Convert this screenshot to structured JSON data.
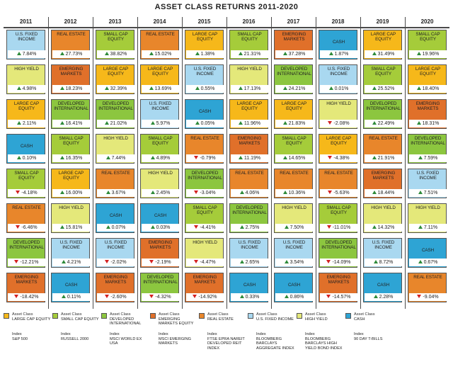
{
  "title": "ASSET CLASS RETURNS 2011-2020",
  "colors": {
    "large_cap": "#f6b81a",
    "small_cap": "#a5cc3a",
    "developed": "#8cc63f",
    "emerging": "#e0702a",
    "real_estate": "#e8862b",
    "us_fixed": "#a9d8f0",
    "high_yield": "#e4e87a",
    "cash": "#2ea4d4"
  },
  "assets": {
    "large_cap": "LARGE CAP EQUITY",
    "small_cap": "SMALL CAP EQUITY",
    "developed": "DEVELOPED INTERNATIONAL",
    "emerging": "EMERGING MARKETS",
    "real_estate": "REAL ESTATE",
    "us_fixed": "U.S. FIXED INCOME",
    "high_yield": "HIGH YIELD",
    "cash": "CASH"
  },
  "chart_data": {
    "type": "table",
    "title": "ASSET CLASS RETURNS 2011-2020",
    "years": [
      "2011",
      "2012",
      "2013",
      "2014",
      "2015",
      "2016",
      "2017",
      "2018",
      "2019",
      "2020"
    ],
    "columns": [
      [
        [
          "U.S. FIXED INCOME",
          "7.84%",
          "up",
          "us_fixed"
        ],
        [
          "HIGH YIELD",
          "4.98%",
          "up",
          "high_yield"
        ],
        [
          "LARGE CAP EQUITY",
          "2.11%",
          "up",
          "large_cap"
        ],
        [
          "CASH",
          "0.10%",
          "up",
          "cash"
        ],
        [
          "SMALL CAP EQUITY",
          "-4.18%",
          "down",
          "small_cap"
        ],
        [
          "REAL ESTATE",
          "-6.46%",
          "down",
          "real_estate"
        ],
        [
          "DEVELOPED INTERNATIONAL",
          "-12.21%",
          "down",
          "developed"
        ],
        [
          "EMERGING MARKETS",
          "-18.42%",
          "down",
          "emerging"
        ]
      ],
      [
        [
          "REAL ESTATE",
          "27.73%",
          "up",
          "real_estate"
        ],
        [
          "EMERGING MARKETS",
          "18.23%",
          "up",
          "emerging"
        ],
        [
          "DEVELOPED INTERNATIONAL",
          "16.41%",
          "up",
          "developed"
        ],
        [
          "SMALL CAP EQUITY",
          "16.35%",
          "up",
          "small_cap"
        ],
        [
          "LARGE CAP EQUITY",
          "16.00%",
          "up",
          "large_cap"
        ],
        [
          "HIGH YIELD",
          "15.81%",
          "up",
          "high_yield"
        ],
        [
          "U.S. FIXED INCOME",
          "4.21%",
          "up",
          "us_fixed"
        ],
        [
          "CASH",
          "0.11%",
          "up",
          "cash"
        ]
      ],
      [
        [
          "SMALL CAP EQUITY",
          "38.82%",
          "up",
          "small_cap"
        ],
        [
          "LARGE CAP EQUITY",
          "32.39%",
          "up",
          "large_cap"
        ],
        [
          "DEVELOPED INTERNATIONAL",
          "21.02%",
          "up",
          "developed"
        ],
        [
          "HIGH YIELD",
          "7.44%",
          "up",
          "high_yield"
        ],
        [
          "REAL ESTATE",
          "3.67%",
          "up",
          "real_estate"
        ],
        [
          "CASH",
          "0.07%",
          "up",
          "cash"
        ],
        [
          "U.S. FIXED INCOME",
          "-2.02%",
          "down",
          "us_fixed"
        ],
        [
          "EMERGING MARKETS",
          "-2.60%",
          "down",
          "emerging"
        ]
      ],
      [
        [
          "REAL ESTATE",
          "15.02%",
          "up",
          "real_estate"
        ],
        [
          "LARGE CAP EQUITY",
          "13.69%",
          "up",
          "large_cap"
        ],
        [
          "U.S. FIXED INCOME",
          "5.97%",
          "up",
          "us_fixed"
        ],
        [
          "SMALL CAP EQUITY",
          "4.89%",
          "up",
          "small_cap"
        ],
        [
          "HIGH YIELD",
          "2.45%",
          "up",
          "high_yield"
        ],
        [
          "CASH",
          "0.03%",
          "up",
          "cash"
        ],
        [
          "EMERGING MARKETS",
          "-2.19%",
          "down",
          "emerging"
        ],
        [
          "DEVELOPED INTERNATIONAL",
          "-4.32%",
          "down",
          "developed"
        ]
      ],
      [
        [
          "LARGE CAP EQUITY",
          "1.38%",
          "up",
          "large_cap"
        ],
        [
          "U.S. FIXED INCOME",
          "0.55%",
          "up",
          "us_fixed"
        ],
        [
          "CASH",
          "0.05%",
          "up",
          "cash"
        ],
        [
          "REAL ESTATE",
          "-0.79%",
          "down",
          "real_estate"
        ],
        [
          "DEVELOPED INTERNATIONAL",
          "-3.04%",
          "down",
          "developed"
        ],
        [
          "SMALL CAP EQUITY",
          "-4.41%",
          "down",
          "small_cap"
        ],
        [
          "HIGH YIELD",
          "-4.47%",
          "down",
          "high_yield"
        ],
        [
          "EMERGING MARKETS",
          "-14.92%",
          "down",
          "emerging"
        ]
      ],
      [
        [
          "SMALL CAP EQUITY",
          "21.31%",
          "up",
          "small_cap"
        ],
        [
          "HIGH YIELD",
          "17.13%",
          "up",
          "high_yield"
        ],
        [
          "LARGE CAP EQUITY",
          "11.96%",
          "up",
          "large_cap"
        ],
        [
          "EMERGING MARKETS",
          "11.19%",
          "up",
          "emerging"
        ],
        [
          "REAL ESTATE",
          "4.06%",
          "up",
          "real_estate"
        ],
        [
          "DEVELOPED INTERNATIONAL",
          "2.75%",
          "up",
          "developed"
        ],
        [
          "U.S. FIXED INCOME",
          "2.65%",
          "up",
          "us_fixed"
        ],
        [
          "CASH",
          "0.33%",
          "up",
          "cash"
        ]
      ],
      [
        [
          "EMERGING MARKETS",
          "37.28%",
          "up",
          "emerging"
        ],
        [
          "DEVELOPED INTERNATIONAL",
          "24.21%",
          "up",
          "developed"
        ],
        [
          "LARGE CAP EQUITY",
          "21.83%",
          "up",
          "large_cap"
        ],
        [
          "SMALL CAP EQUITY",
          "14.65%",
          "up",
          "small_cap"
        ],
        [
          "REAL ESTATE",
          "10.36%",
          "up",
          "real_estate"
        ],
        [
          "HIGH YIELD",
          "7.50%",
          "up",
          "high_yield"
        ],
        [
          "U.S. FIXED INCOME",
          "3.54%",
          "up",
          "us_fixed"
        ],
        [
          "CASH",
          "0.86%",
          "up",
          "cash"
        ]
      ],
      [
        [
          "CASH",
          "1.87%",
          "up",
          "cash"
        ],
        [
          "U.S. FIXED INCOME",
          "0.01%",
          "up",
          "us_fixed"
        ],
        [
          "HIGH YIELD",
          "-2.08%",
          "down",
          "high_yield"
        ],
        [
          "LARGE CAP EQUITY",
          "-4.38%",
          "down",
          "large_cap"
        ],
        [
          "REAL ESTATE",
          "-5.63%",
          "down",
          "real_estate"
        ],
        [
          "SMALL CAP EQUITY",
          "-11.01%",
          "down",
          "small_cap"
        ],
        [
          "DEVELOPED INTERNATIONAL",
          "-14.09%",
          "down",
          "developed"
        ],
        [
          "EMERGING MARKETS",
          "-14.57%",
          "down",
          "emerging"
        ]
      ],
      [
        [
          "LARGE CAP EQUITY",
          "31.49%",
          "up",
          "large_cap"
        ],
        [
          "SMALL CAP EQUITY",
          "25.52%",
          "up",
          "small_cap"
        ],
        [
          "DEVELOPED INTERNATIONAL",
          "22.49%",
          "up",
          "developed"
        ],
        [
          "REAL ESTATE",
          "21.91%",
          "up",
          "real_estate"
        ],
        [
          "EMERGING MARKETS",
          "18.44%",
          "up",
          "emerging"
        ],
        [
          "HIGH YIELD",
          "14.32%",
          "up",
          "high_yield"
        ],
        [
          "U.S. FIXED INCOME",
          "8.72%",
          "up",
          "us_fixed"
        ],
        [
          "CASH",
          "2.28%",
          "up",
          "cash"
        ]
      ],
      [
        [
          "SMALL CAP EQUITY",
          "19.96%",
          "up",
          "small_cap"
        ],
        [
          "LARGE CAP EQUITY",
          "18.40%",
          "up",
          "large_cap"
        ],
        [
          "EMERGING MARKETS",
          "18.31%",
          "up",
          "emerging"
        ],
        [
          "DEVELOPED INTERNATIONAL",
          "7.59%",
          "up",
          "developed"
        ],
        [
          "U.S. FIXED INCOME",
          "7.51%",
          "up",
          "us_fixed"
        ],
        [
          "HIGH YIELD",
          "7.11%",
          "up",
          "high_yield"
        ],
        [
          "CASH",
          "0.67%",
          "up",
          "cash"
        ],
        [
          "REAL ESTATE",
          "-9.04%",
          "down",
          "real_estate"
        ]
      ]
    ]
  },
  "legend": {
    "prefix": "Asset Class",
    "index_prefix": "Index",
    "items": [
      {
        "key": "large_cap",
        "name": "LARGE CAP EQUITY",
        "index": "S&P 500"
      },
      {
        "key": "small_cap",
        "name": "SMALL CAP EQUITY",
        "index": "RUSSELL 2000"
      },
      {
        "key": "developed",
        "name": "DEVELOPED INTERNATIONAL",
        "index": "MSCI WORLD ex USA"
      },
      {
        "key": "emerging",
        "name": "EMERGING MARKETS EQUITY",
        "index": "MSCI EMERGING MARKETS"
      },
      {
        "key": "real_estate",
        "name": "REAL ESTATE",
        "index": "FTSE EPRA NAREIT DEVELOPED REIT INDEX"
      },
      {
        "key": "us_fixed",
        "name": "U.S. FIXED INCOME",
        "index": "BLOOMBERG BARCLAYS AGGREGATE INDEX"
      },
      {
        "key": "high_yield",
        "name": "HIGH YIELD",
        "index": "BLOOMBERG BARCLAYS HIGH YIELD BOND INDEX"
      },
      {
        "key": "cash",
        "name": "CASH",
        "index": "90 DAY T-BILLS"
      }
    ]
  }
}
